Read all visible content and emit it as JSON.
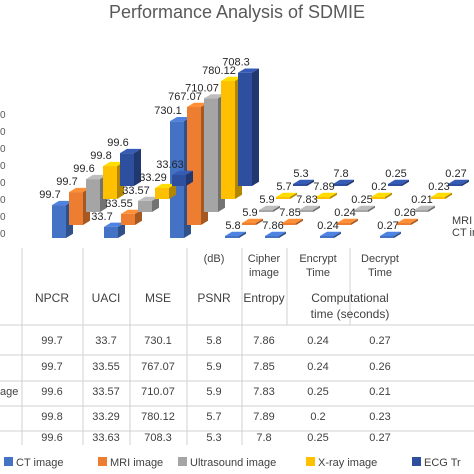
{
  "chart_data": {
    "type": "bar",
    "title": "Performance Analysis of SDMIE",
    "categories": [
      "NPCR",
      "UACI",
      "MSE",
      "PSNR",
      "Cipher image Entropy",
      "Encrypt Time",
      "Decrypt Time"
    ],
    "header_top": [
      "",
      "",
      "",
      "(dB)",
      "Cipher image",
      "Encrypt Time",
      "Decrypt Time"
    ],
    "header_bottom": [
      "NPCR",
      "UACI",
      "MSE",
      "PSNR",
      "Entropy",
      "Computational time (seconds)"
    ],
    "series": [
      {
        "name": "CT image",
        "row_label": "",
        "values": [
          99.7,
          33.7,
          730.1,
          5.8,
          7.86,
          0.24,
          0.27
        ]
      },
      {
        "name": "MRI image",
        "row_label": "",
        "values": [
          99.7,
          33.55,
          767.07,
          5.9,
          7.85,
          0.24,
          0.26
        ]
      },
      {
        "name": "Ultrasound image",
        "row_label": "age",
        "values": [
          99.6,
          33.57,
          710.07,
          5.9,
          7.83,
          0.25,
          0.21
        ]
      },
      {
        "name": "X-ray image",
        "row_label": "",
        "values": [
          99.8,
          33.29,
          780.12,
          5.7,
          7.89,
          0.2,
          0.23
        ]
      },
      {
        "name": "ECG Tr",
        "row_label": "",
        "values": [
          99.6,
          33.63,
          708.3,
          5.3,
          7.8,
          0.25,
          0.27
        ]
      }
    ],
    "depth_labels": [
      "MRI",
      "CT ima"
    ],
    "colors": [
      "#4472c4",
      "#ed7d31",
      "#a5a5a5",
      "#ffc000",
      "#2e4f9e"
    ],
    "legend_position": "bottom",
    "grid": false,
    "axis_tick_stub": "0"
  }
}
